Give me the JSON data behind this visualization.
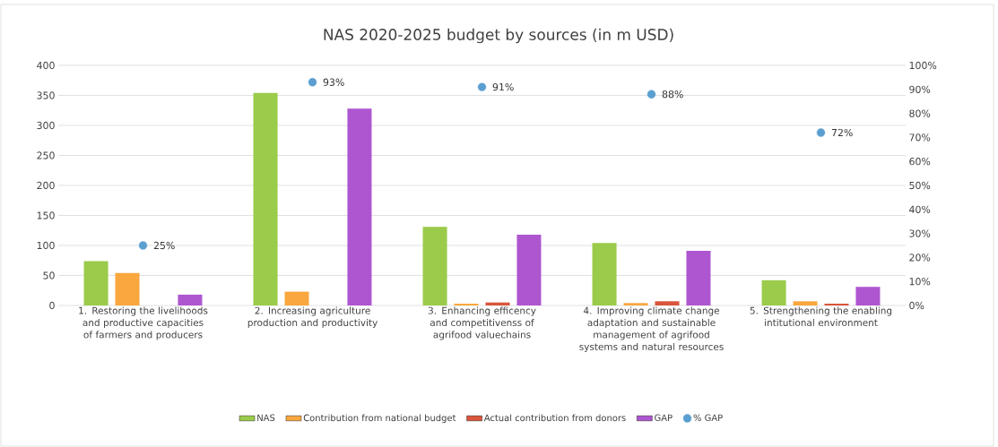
{
  "chart_data": {
    "type": "bar",
    "title": "NAS 2020-2025 budget by sources (in m USD)",
    "categories": [
      "1. Restoring the livelihoods and productive capacities of farmers and producers",
      "2. Increasing agriculture production and productivity",
      "3. Enhancing efficency and competitivenss of agrifood valuechains",
      "4. Improving climate change adaptation and sustainable management of agrifood systems and natural resources",
      "5. Strengthening the enabling intitutional environment"
    ],
    "series": [
      {
        "name": "NAS",
        "color": "#9bcb4a",
        "values": [
          74,
          354,
          131,
          104,
          42
        ]
      },
      {
        "name": "Contribution from national budget",
        "color": "#f9a73e",
        "values": [
          54,
          23,
          3,
          4,
          7
        ]
      },
      {
        "name": "Actual contribution from donors",
        "color": "#d9553b",
        "values": [
          0,
          0,
          5,
          7,
          3
        ]
      },
      {
        "name": "GAP",
        "color": "#ae56d0",
        "values": [
          18,
          328,
          118,
          91,
          31
        ]
      },
      {
        "name": "% GAP",
        "color": "#5b9fd0",
        "type": "scatter",
        "axis": "y2",
        "values": [
          25,
          93,
          91,
          88,
          72
        ],
        "value_labels": [
          "25%",
          "93%",
          "91%",
          "88%",
          "72%"
        ]
      }
    ],
    "ylim": [
      0,
      400
    ],
    "yticks": [
      0,
      50,
      100,
      150,
      200,
      250,
      300,
      350,
      400
    ],
    "y2lim": [
      0,
      100
    ],
    "y2ticks": [
      {
        "value": 0,
        "label": "0%"
      },
      {
        "value": 10,
        "label": "10%"
      },
      {
        "value": 20,
        "label": "20%"
      },
      {
        "value": 30,
        "label": "30%"
      },
      {
        "value": 40,
        "label": "40%"
      },
      {
        "value": 50,
        "label": "50%"
      },
      {
        "value": 60,
        "label": "60%"
      },
      {
        "value": 70,
        "label": "70%"
      },
      {
        "value": 80,
        "label": "80%"
      },
      {
        "value": 90,
        "label": "90%"
      },
      {
        "value": 100,
        "label": "100%"
      }
    ],
    "grid": "y",
    "legend": "bottom"
  }
}
